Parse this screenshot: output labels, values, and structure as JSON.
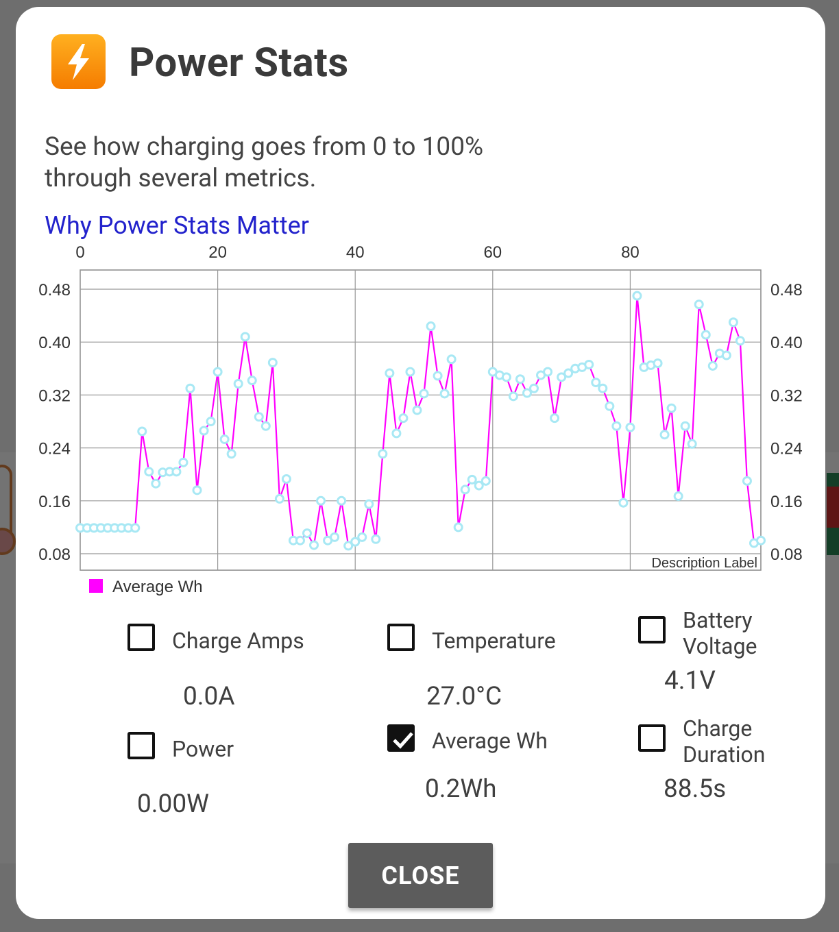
{
  "dialog": {
    "title": "Power Stats",
    "subtitle": "See how charging goes from 0 to 100% through several metrics.",
    "link_text": "Why Power Stats Matter",
    "close_label": "CLOSE"
  },
  "metrics": [
    {
      "label": "Charge Amps",
      "value": "0.0A",
      "checked": false
    },
    {
      "label": "Temperature",
      "value": "27.0°C",
      "checked": false
    },
    {
      "label": "Battery Voltage",
      "value": "4.1V",
      "checked": false
    },
    {
      "label": "Power",
      "value": "0.00W",
      "checked": false
    },
    {
      "label": "Average Wh",
      "value": "0.2Wh",
      "checked": true
    },
    {
      "label": "Charge Duration",
      "value": "88.5s",
      "checked": false
    }
  ],
  "chart_data": {
    "type": "line",
    "description_label": "Description Label",
    "legend": [
      {
        "name": "Average Wh",
        "color": "#ff00ff"
      }
    ],
    "xlim": [
      0,
      99
    ],
    "ylim": [
      0.08,
      0.51
    ],
    "x_ticks": [
      "0",
      "20",
      "40",
      "60",
      "80"
    ],
    "y_ticks": [
      "0.08",
      "0.16",
      "0.24",
      "0.32",
      "0.40",
      "0.48"
    ],
    "line_color": "#ff00ff",
    "point_color": "#a8e8f4",
    "grid": true,
    "series": [
      {
        "name": "Average Wh",
        "x": [
          0,
          1,
          2,
          3,
          4,
          5,
          6,
          7,
          8,
          9,
          10,
          11,
          12,
          13,
          14,
          15,
          16,
          17,
          18,
          19,
          20,
          21,
          22,
          23,
          24,
          25,
          26,
          27,
          28,
          29,
          30,
          31,
          32,
          33,
          34,
          35,
          36,
          37,
          38,
          39,
          40,
          41,
          42,
          43,
          44,
          45,
          46,
          47,
          48,
          49,
          50,
          51,
          52,
          53,
          54,
          55,
          56,
          57,
          58,
          59,
          60,
          61,
          62,
          63,
          64,
          65,
          66,
          67,
          68,
          69,
          70,
          71,
          72,
          73,
          74,
          75,
          76,
          77,
          78,
          79,
          80,
          81,
          82,
          83,
          84,
          85,
          86,
          87,
          88,
          89,
          90,
          91,
          92,
          93,
          94,
          95,
          96,
          97,
          98,
          99
        ],
        "values": [
          0.119,
          0.119,
          0.119,
          0.119,
          0.119,
          0.119,
          0.119,
          0.119,
          0.119,
          0.265,
          0.204,
          0.186,
          0.203,
          0.204,
          0.204,
          0.218,
          0.33,
          0.176,
          0.266,
          0.28,
          0.355,
          0.253,
          0.231,
          0.337,
          0.408,
          0.342,
          0.287,
          0.273,
          0.369,
          0.163,
          0.193,
          0.1,
          0.1,
          0.111,
          0.093,
          0.16,
          0.1,
          0.105,
          0.16,
          0.092,
          0.098,
          0.105,
          0.155,
          0.102,
          0.231,
          0.353,
          0.262,
          0.285,
          0.355,
          0.297,
          0.322,
          0.424,
          0.349,
          0.322,
          0.374,
          0.12,
          0.177,
          0.192,
          0.183,
          0.19,
          0.355,
          0.35,
          0.347,
          0.318,
          0.344,
          0.323,
          0.33,
          0.35,
          0.355,
          0.285,
          0.347,
          0.353,
          0.36,
          0.362,
          0.366,
          0.339,
          0.33,
          0.303,
          0.273,
          0.157,
          0.271,
          0.47,
          0.362,
          0.365,
          0.368,
          0.26,
          0.3,
          0.167,
          0.273,
          0.246,
          0.457,
          0.411,
          0.364,
          0.383,
          0.38,
          0.43,
          0.402,
          0.19,
          0.096,
          0.1
        ]
      }
    ]
  }
}
